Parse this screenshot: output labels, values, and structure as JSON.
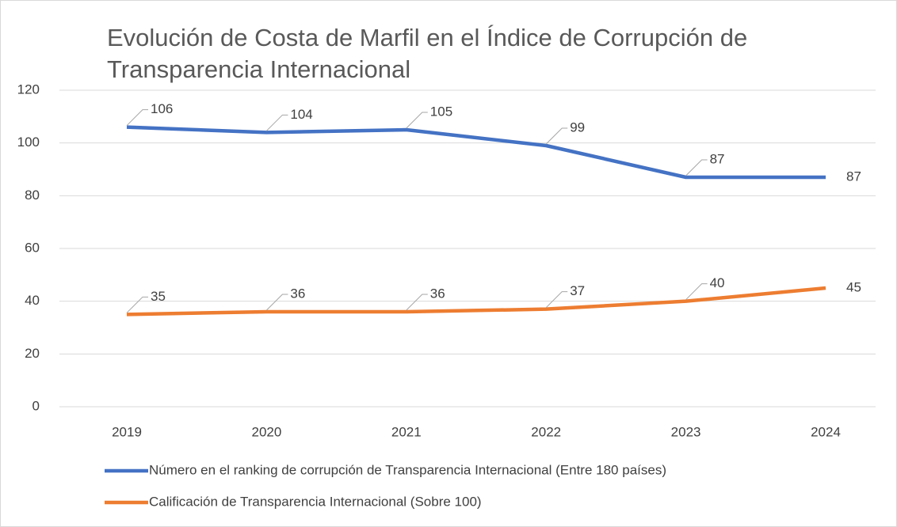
{
  "chart_data": {
    "type": "line",
    "title": "Evolución de Costa de Marfil en el Índice de Corrupción de Transparencia Internacional",
    "categories": [
      "2019",
      "2020",
      "2021",
      "2022",
      "2023",
      "2024"
    ],
    "series": [
      {
        "name": "Número en el ranking de corrupción de Transparencia Internacional (Entre 180 países)",
        "color": "#4472c4",
        "values": [
          106,
          104,
          105,
          99,
          87,
          87
        ]
      },
      {
        "name": "Calificación de Transparencia Internacional (Sobre 100)",
        "color": "#ed7d31",
        "values": [
          35,
          36,
          36,
          37,
          40,
          45
        ]
      }
    ],
    "ylim": [
      0,
      120
    ],
    "yticks": [
      0,
      20,
      40,
      60,
      80,
      100,
      120
    ],
    "grid": true,
    "legend": "bottom"
  }
}
